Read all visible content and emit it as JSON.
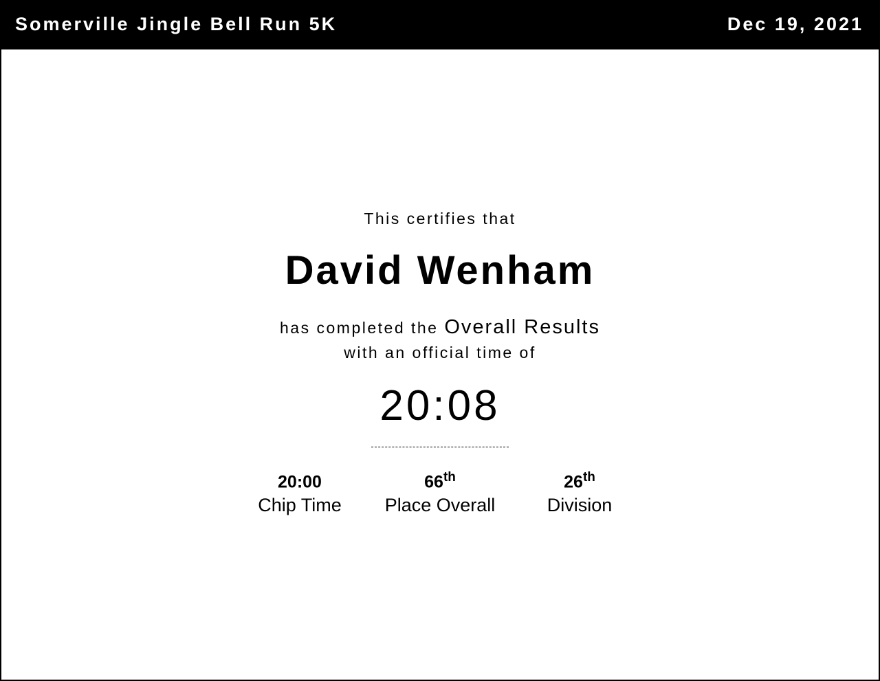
{
  "header": {
    "event_title": "Somerville Jingle Bell Run 5K",
    "date": "Dec 19, 2021"
  },
  "certificate": {
    "intro": "This certifies that",
    "runner_name": "David Wenham",
    "completed_prefix": "has completed the",
    "event_category": "Overall Results",
    "time_prefix": "with an official time of",
    "official_time": "20:08"
  },
  "stats": [
    {
      "value": "20:00",
      "suffix": "",
      "label": "Chip Time"
    },
    {
      "value": "66",
      "suffix": "th",
      "label": "Place Overall"
    },
    {
      "value": "26",
      "suffix": "th",
      "label": "Division"
    }
  ]
}
